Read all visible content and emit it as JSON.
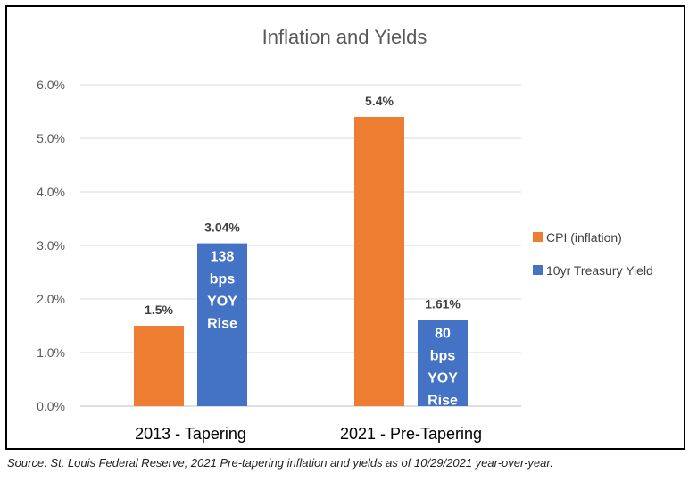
{
  "chart_data": {
    "type": "bar",
    "title": "Inflation and Yields",
    "categories": [
      "2013 - Tapering",
      "2021 - Pre-Tapering"
    ],
    "series": [
      {
        "name": "CPI (inflation)",
        "color": "#ed7d31",
        "values": [
          1.5,
          5.4
        ],
        "value_labels": [
          "1.5%",
          "5.4%"
        ],
        "bar_text": [
          [],
          []
        ]
      },
      {
        "name": "10yr Treasury Yield",
        "color": "#4472c4",
        "values": [
          3.04,
          1.61
        ],
        "value_labels": [
          "3.04%",
          "1.61%"
        ],
        "bar_text": [
          [
            "138",
            "bps",
            "YOY",
            "Rise"
          ],
          [
            "80",
            "bps",
            "YOY",
            "Rise"
          ]
        ]
      }
    ],
    "ylim": [
      0,
      6
    ],
    "yticks": [
      0,
      1,
      2,
      3,
      4,
      5,
      6
    ],
    "ytick_labels": [
      "0.0%",
      "1.0%",
      "2.0%",
      "3.0%",
      "4.0%",
      "5.0%",
      "6.0%"
    ],
    "grid": true,
    "legend": "right"
  },
  "source": "Source:  St. Louis Federal Reserve; 2021 Pre-tapering inflation and yields as of 10/29/2021 year-over-year."
}
